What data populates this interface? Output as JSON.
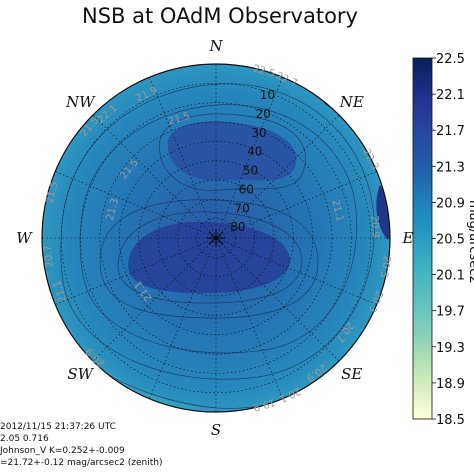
{
  "chart_data": {
    "type": "heatmap",
    "projection": "polar-sky",
    "title": "NSB at OAdM Observatory",
    "directions": [
      "N",
      "NE",
      "E",
      "SE",
      "S",
      "SW",
      "W",
      "NW"
    ],
    "altitude_rings": [
      10,
      20,
      30,
      40,
      50,
      60,
      70,
      80
    ],
    "colorbar": {
      "ticks": [
        "22.5",
        "22.1",
        "21.7",
        "21.3",
        "20.9",
        "20.5",
        "20.1",
        "19.7",
        "19.3",
        "18.9",
        "18.5"
      ],
      "range": [
        18.5,
        22.5
      ],
      "label": "mag/arcsec2",
      "colormap": "YlGnBu"
    },
    "contour_labels": [
      "22.1",
      "21.9",
      "21.5",
      "21.5",
      "21.5",
      "21.3",
      "21.1",
      "21.1",
      "20.9",
      "20.9",
      "20.7",
      "20.7",
      "20.5",
      "20.3",
      "20.1",
      "19.9",
      "22.5",
      "22.7",
      "22.3",
      "21.5",
      "21.1",
      "20.9"
    ],
    "grid": true
  },
  "info": {
    "line1": "2012/11/15 21:37:26 UTC",
    "line2": "2.05     0.716",
    "line3": "Johnson_V    K=0.252+-0.009",
    "line4": "=21.72+-0.12 mag/arcsec2 (zenith)"
  },
  "colors": {
    "dark_blue": "#253494",
    "mid_blue": "#2c7fb8",
    "teal": "#41b6c4",
    "pale": "#ffffd9"
  }
}
